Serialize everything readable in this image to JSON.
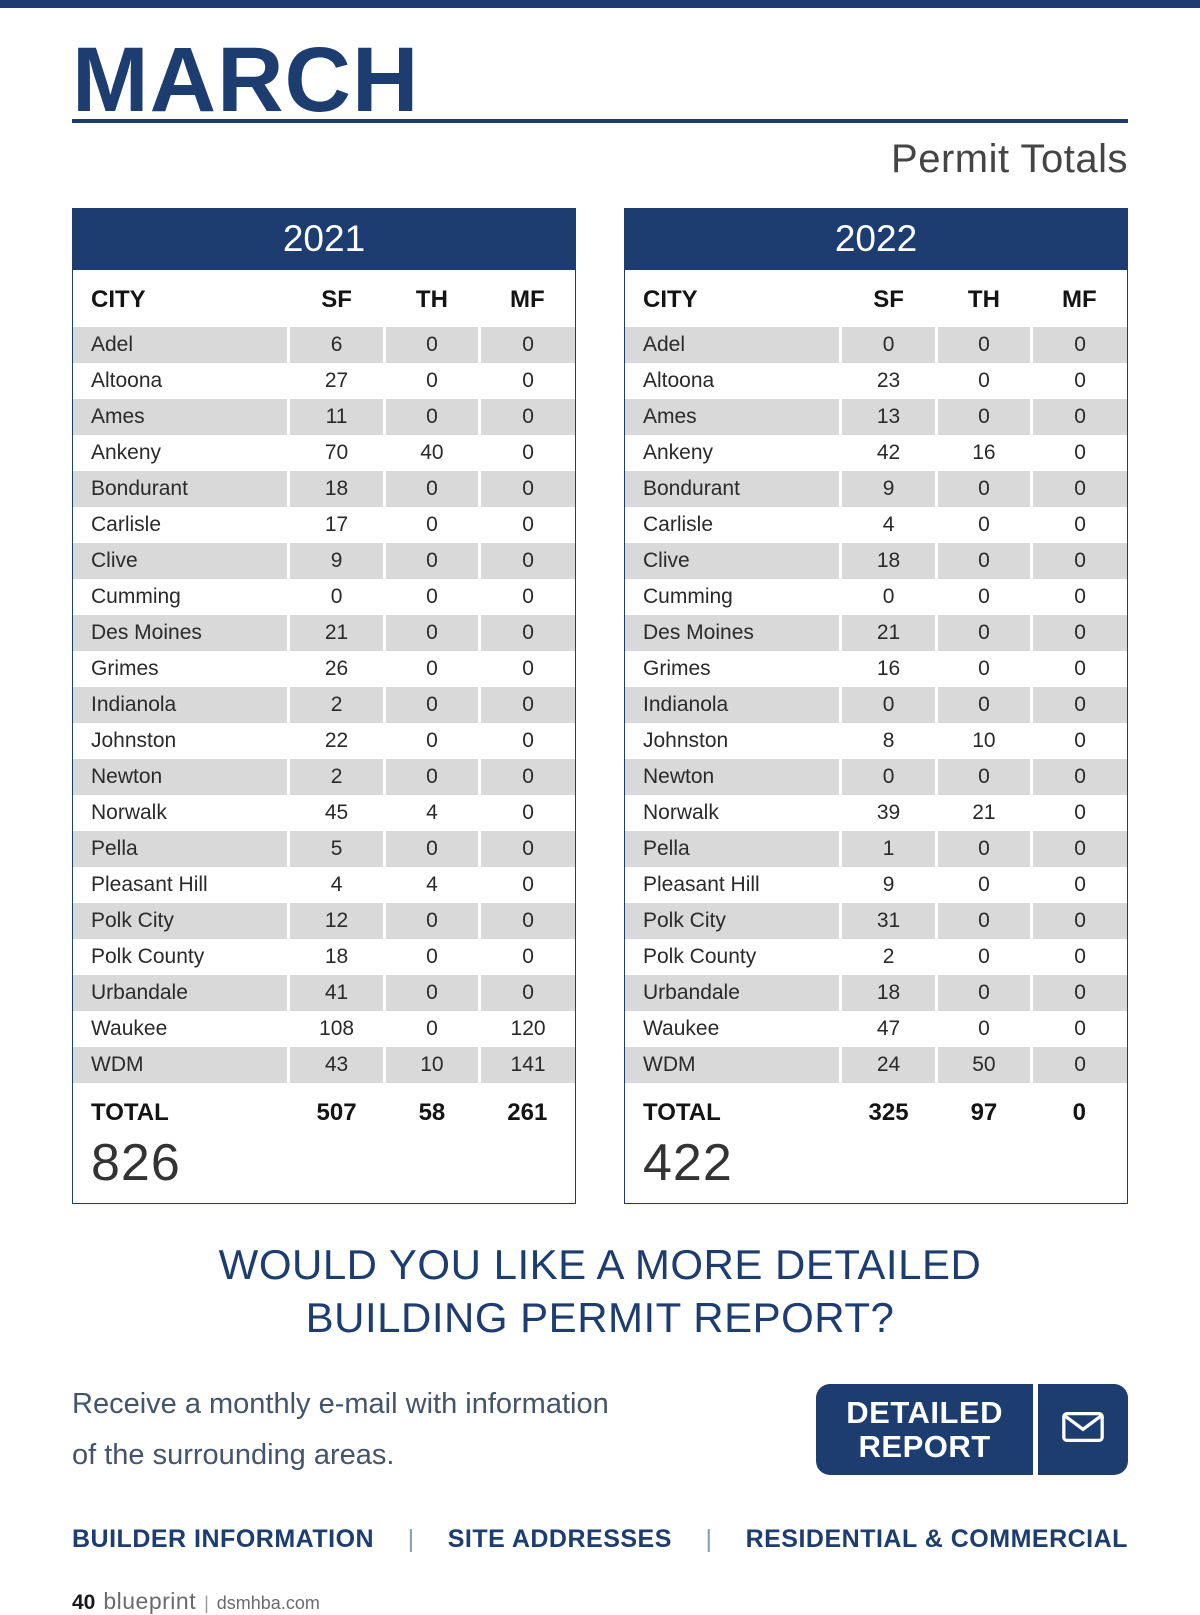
{
  "header": {
    "title": "MARCH",
    "subtitle": "Permit Totals"
  },
  "colors": {
    "accent_navy": "#1d3d70",
    "row_gray": "#d9d9d9"
  },
  "tables": [
    {
      "year": "2021",
      "columns": [
        "CITY",
        "SF",
        "TH",
        "MF"
      ],
      "rows": [
        [
          "Adel",
          "6",
          "0",
          "0"
        ],
        [
          "Altoona",
          "27",
          "0",
          "0"
        ],
        [
          "Ames",
          "11",
          "0",
          "0"
        ],
        [
          "Ankeny",
          "70",
          "40",
          "0"
        ],
        [
          "Bondurant",
          "18",
          "0",
          "0"
        ],
        [
          "Carlisle",
          "17",
          "0",
          "0"
        ],
        [
          "Clive",
          "9",
          "0",
          "0"
        ],
        [
          "Cumming",
          "0",
          "0",
          "0"
        ],
        [
          "Des Moines",
          "21",
          "0",
          "0"
        ],
        [
          "Grimes",
          "26",
          "0",
          "0"
        ],
        [
          "Indianola",
          "2",
          "0",
          "0"
        ],
        [
          "Johnston",
          "22",
          "0",
          "0"
        ],
        [
          "Newton",
          "2",
          "0",
          "0"
        ],
        [
          "Norwalk",
          "45",
          "4",
          "0"
        ],
        [
          "Pella",
          "5",
          "0",
          "0"
        ],
        [
          "Pleasant Hill",
          "4",
          "4",
          "0"
        ],
        [
          "Polk City",
          "12",
          "0",
          "0"
        ],
        [
          "Polk County",
          "18",
          "0",
          "0"
        ],
        [
          "Urbandale",
          "41",
          "0",
          "0"
        ],
        [
          "Waukee",
          "108",
          "0",
          "120"
        ],
        [
          "WDM",
          "43",
          "10",
          "141"
        ]
      ],
      "total_label": "TOTAL",
      "totals": [
        "507",
        "58",
        "261"
      ],
      "grand_total": "826"
    },
    {
      "year": "2022",
      "columns": [
        "CITY",
        "SF",
        "TH",
        "MF"
      ],
      "rows": [
        [
          "Adel",
          "0",
          "0",
          "0"
        ],
        [
          "Altoona",
          "23",
          "0",
          "0"
        ],
        [
          "Ames",
          "13",
          "0",
          "0"
        ],
        [
          "Ankeny",
          "42",
          "16",
          "0"
        ],
        [
          "Bondurant",
          "9",
          "0",
          "0"
        ],
        [
          "Carlisle",
          "4",
          "0",
          "0"
        ],
        [
          "Clive",
          "18",
          "0",
          "0"
        ],
        [
          "Cumming",
          "0",
          "0",
          "0"
        ],
        [
          "Des Moines",
          "21",
          "0",
          "0"
        ],
        [
          "Grimes",
          "16",
          "0",
          "0"
        ],
        [
          "Indianola",
          "0",
          "0",
          "0"
        ],
        [
          "Johnston",
          "8",
          "10",
          "0"
        ],
        [
          "Newton",
          "0",
          "0",
          "0"
        ],
        [
          "Norwalk",
          "39",
          "21",
          "0"
        ],
        [
          "Pella",
          "1",
          "0",
          "0"
        ],
        [
          "Pleasant Hill",
          "9",
          "0",
          "0"
        ],
        [
          "Polk City",
          "31",
          "0",
          "0"
        ],
        [
          "Polk County",
          "2",
          "0",
          "0"
        ],
        [
          "Urbandale",
          "18",
          "0",
          "0"
        ],
        [
          "Waukee",
          "47",
          "0",
          "0"
        ],
        [
          "WDM",
          "24",
          "50",
          "0"
        ]
      ],
      "total_label": "TOTAL",
      "totals": [
        "325",
        "97",
        "0"
      ],
      "grand_total": "422"
    }
  ],
  "cta": {
    "heading_line1": "WOULD YOU LIKE A MORE DETAILED",
    "heading_line2": "BUILDING PERMIT REPORT?",
    "body_line1": "Receive a monthly e-mail with information",
    "body_line2": "of the surrounding areas.",
    "button_line1": "DETAILED",
    "button_line2": "REPORT",
    "button_icon": "envelope-icon"
  },
  "footer_links": {
    "item1": "BUILDER INFORMATION",
    "item2": "SITE ADDRESSES",
    "item3": "RESIDENTIAL & COMMERCIAL",
    "separator": "|"
  },
  "page_footer": {
    "page_number": "40",
    "brand": "blueprint",
    "separator": "|",
    "site": "dsmhba.com"
  }
}
